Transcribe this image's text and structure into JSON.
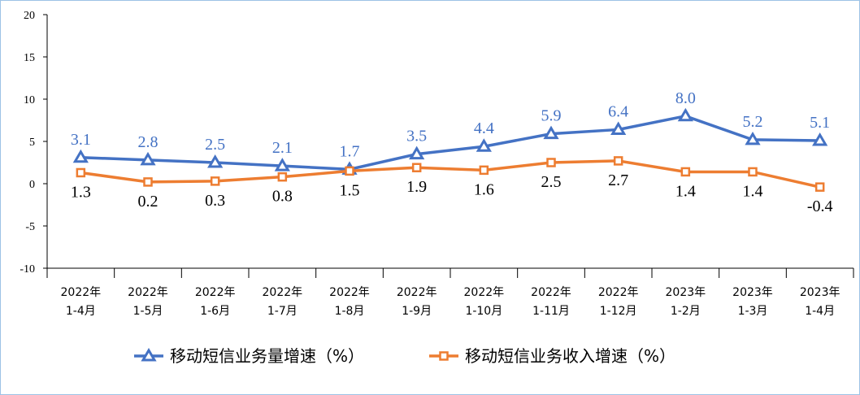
{
  "chart_data": {
    "type": "line",
    "categories": [
      [
        "2022年",
        "1-4月"
      ],
      [
        "2022年",
        "1-5月"
      ],
      [
        "2022年",
        "1-6月"
      ],
      [
        "2022年",
        "1-7月"
      ],
      [
        "2022年",
        "1-8月"
      ],
      [
        "2022年",
        "1-9月"
      ],
      [
        "2022年",
        "1-10月"
      ],
      [
        "2022年",
        "1-11月"
      ],
      [
        "2022年",
        "1-12月"
      ],
      [
        "2023年",
        "1-2月"
      ],
      [
        "2023年",
        "1-3月"
      ],
      [
        "2023年",
        "1-4月"
      ]
    ],
    "series": [
      {
        "name": "移动短信业务量增速（%）",
        "color": "#4472c4",
        "marker": "triangle",
        "values": [
          3.1,
          2.8,
          2.5,
          2.1,
          1.7,
          3.5,
          4.4,
          5.9,
          6.4,
          8.0,
          5.2,
          5.1
        ],
        "value_labels": [
          "3.1",
          "2.8",
          "2.5",
          "2.1",
          "1.7",
          "3.5",
          "4.4",
          "5.9",
          "6.4",
          "8.0",
          "5.2",
          "5.1"
        ]
      },
      {
        "name": "移动短信业务收入增速（%）",
        "color": "#ed7d31",
        "marker": "square",
        "values": [
          1.3,
          0.2,
          0.3,
          0.8,
          1.5,
          1.9,
          1.6,
          2.5,
          2.7,
          1.4,
          1.4,
          -0.4
        ],
        "value_labels": [
          "1.3",
          "0.2",
          "0.3",
          "0.8",
          "1.5",
          "1.9",
          "1.6",
          "2.5",
          "2.7",
          "1.4",
          "1.4",
          "-0.4"
        ]
      }
    ],
    "ylim": [
      -10,
      20
    ],
    "yticks": [
      -10,
      -5,
      0,
      5,
      10,
      15,
      20
    ]
  }
}
